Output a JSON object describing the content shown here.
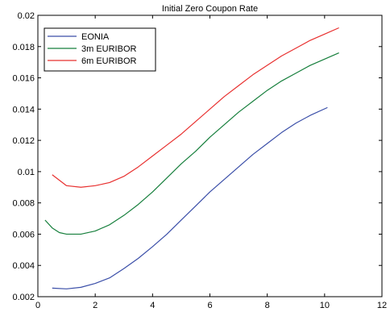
{
  "chart_data": {
    "type": "line",
    "title": "Initial Zero Coupon Rate",
    "xlabel": "",
    "ylabel": "",
    "xlim": [
      0,
      12
    ],
    "ylim": [
      0.002,
      0.02
    ],
    "xticks": [
      "0",
      "2",
      "4",
      "6",
      "8",
      "10",
      "12"
    ],
    "yticks": [
      "0.002",
      "0.004",
      "0.006",
      "0.008",
      "0.01",
      "0.012",
      "0.014",
      "0.016",
      "0.018",
      "0.02"
    ],
    "grid": false,
    "legend_position": "top-left",
    "series": [
      {
        "name": "EONIA",
        "color": "#3a4ea8",
        "x": [
          0.5,
          1.0,
          1.5,
          2.0,
          2.5,
          3.0,
          3.5,
          4.0,
          4.5,
          5.0,
          5.5,
          6.0,
          6.5,
          7.0,
          7.5,
          8.0,
          8.5,
          9.0,
          9.5,
          10.1
        ],
        "y": [
          0.00255,
          0.0025,
          0.0026,
          0.00285,
          0.0032,
          0.0038,
          0.00445,
          0.0052,
          0.006,
          0.0069,
          0.0078,
          0.0087,
          0.0095,
          0.0103,
          0.0111,
          0.0118,
          0.0125,
          0.0131,
          0.0136,
          0.0141
        ]
      },
      {
        "name": "3m EURIBOR",
        "color": "#167f3c",
        "x": [
          0.25,
          0.5,
          0.75,
          1.0,
          1.5,
          2.0,
          2.5,
          3.0,
          3.5,
          4.0,
          4.5,
          5.0,
          5.5,
          6.0,
          6.5,
          7.0,
          7.5,
          8.0,
          8.5,
          9.0,
          9.5,
          10.0,
          10.5
        ],
        "y": [
          0.0069,
          0.0064,
          0.0061,
          0.006,
          0.006,
          0.0062,
          0.0066,
          0.0072,
          0.0079,
          0.0087,
          0.0096,
          0.0105,
          0.0113,
          0.0122,
          0.013,
          0.0138,
          0.0145,
          0.0152,
          0.0158,
          0.0163,
          0.0168,
          0.0172,
          0.0176
        ]
      },
      {
        "name": "6m EURIBOR",
        "color": "#e8302f",
        "x": [
          0.5,
          1.0,
          1.5,
          2.0,
          2.5,
          3.0,
          3.5,
          4.0,
          4.5,
          5.0,
          5.5,
          6.0,
          6.5,
          7.0,
          7.5,
          8.0,
          8.5,
          9.0,
          9.5,
          10.0,
          10.5
        ],
        "y": [
          0.0098,
          0.0091,
          0.009,
          0.0091,
          0.0093,
          0.0097,
          0.0103,
          0.011,
          0.0117,
          0.0124,
          0.0132,
          0.014,
          0.0148,
          0.0155,
          0.0162,
          0.0168,
          0.0174,
          0.0179,
          0.0184,
          0.0188,
          0.0192
        ]
      }
    ]
  }
}
